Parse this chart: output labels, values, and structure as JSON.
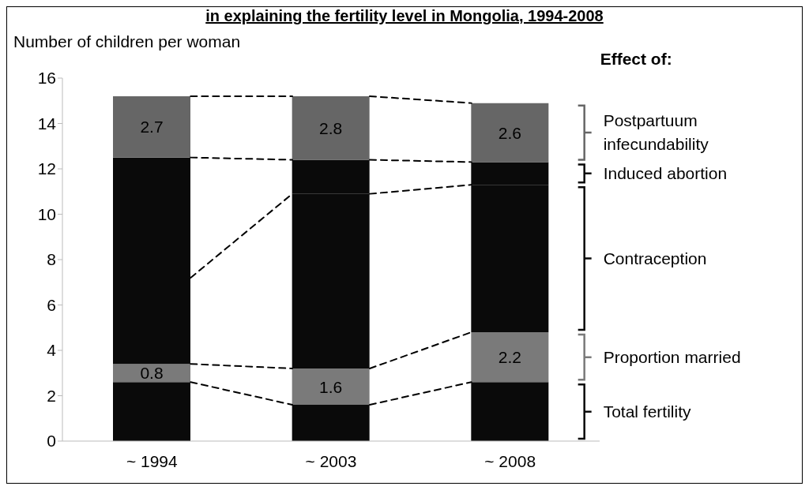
{
  "chart_data": {
    "type": "bar",
    "title": "in explaining the fertility level in Mongolia, 1994-2008",
    "ylabel": "Number of children per woman",
    "legend_title": "Effect of:",
    "categories": [
      "~ 1994",
      "~ 2003",
      "~ 2008"
    ],
    "series": [
      {
        "name": "Total fertility",
        "color": "#0a0a0a",
        "values": [
          2.6,
          1.6,
          2.6
        ]
      },
      {
        "name": "Proportion married",
        "color": "#7a7a7a",
        "values": [
          0.8,
          1.6,
          2.2
        ],
        "value_labels": [
          "0.8",
          "1.6",
          "2.2"
        ]
      },
      {
        "name": "Contraception",
        "color": "#0a0a0a",
        "values": [
          3.8,
          7.7,
          6.5
        ]
      },
      {
        "name": "Induced abortion",
        "color": "#0a0a0a",
        "values": [
          5.3,
          1.5,
          1.0
        ]
      },
      {
        "name": "Postpartuum infecundability",
        "color": "#666666",
        "values": [
          2.7,
          2.8,
          2.6
        ],
        "value_labels": [
          "2.7",
          "2.8",
          "2.6"
        ]
      }
    ],
    "stacked": true,
    "ylim": [
      0,
      16
    ],
    "yticks": [
      0,
      2,
      4,
      6,
      8,
      10,
      12,
      14,
      16
    ],
    "grid": false,
    "legend": "right",
    "line_style": "dashed"
  }
}
